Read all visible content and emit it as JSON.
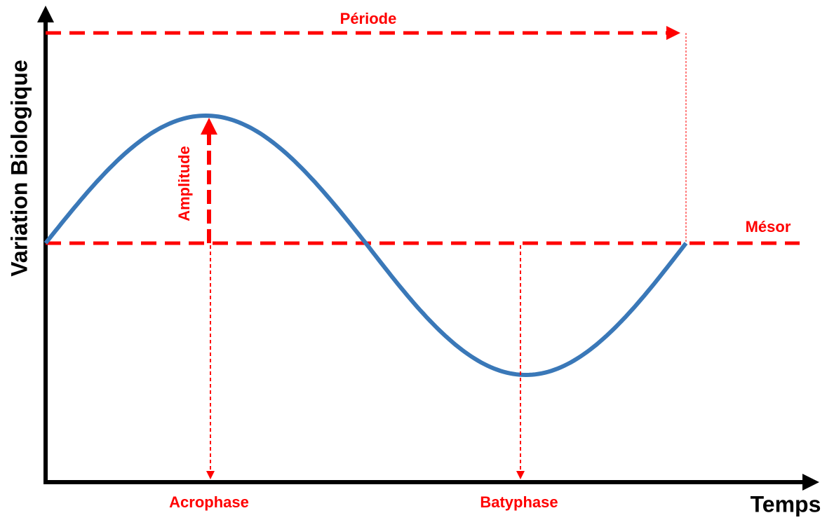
{
  "diagram": {
    "y_axis_label": "Variation Biologique",
    "x_axis_label": "Temps",
    "labels": {
      "period": "Période",
      "mesor": "Mésor",
      "amplitude": "Amplitude",
      "acrophase": "Acrophase",
      "bathyphase": "Batyphase"
    }
  }
}
